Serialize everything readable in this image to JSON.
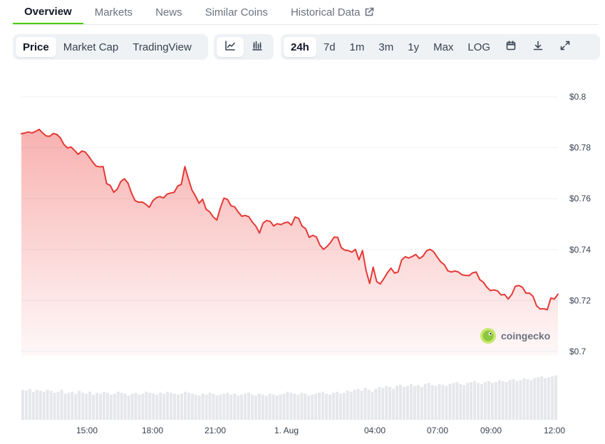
{
  "tabs": [
    {
      "label": "Overview",
      "active": true
    },
    {
      "label": "Markets"
    },
    {
      "label": "News"
    },
    {
      "label": "Similar Coins"
    },
    {
      "label": "Historical Data",
      "external_icon": "external-link-icon"
    }
  ],
  "toolbar": {
    "metric": [
      "Price",
      "Market Cap",
      "TradingView"
    ],
    "metric_selected": "Price",
    "chart_kind_icons": [
      "line-chart-icon",
      "candlestick-chart-icon"
    ],
    "chart_kind_selected": "line-chart-icon",
    "ranges": [
      "24h",
      "7d",
      "1m",
      "3m",
      "1y",
      "Max",
      "LOG"
    ],
    "range_selected": "24h",
    "action_icons": [
      "calendar-icon",
      "download-icon",
      "expand-icon"
    ]
  },
  "watermark": {
    "text": "coingecko"
  },
  "colors": {
    "accent": "#4bcc00",
    "line": "#e53935",
    "volume": "#e5e7eb"
  },
  "chart_data": {
    "type": "area",
    "x_tick_labels": [
      "15:00",
      "18:00",
      "21:00",
      "1. Aug",
      "04:00",
      "07:00",
      "09:00",
      "12:00"
    ],
    "y_tick_labels": [
      "$0.8",
      "$0.78",
      "$0.76",
      "$0.74",
      "$0.72",
      "$0.7"
    ],
    "ylim": [
      0.7,
      0.8
    ],
    "grid": true,
    "series": [
      {
        "values": [
          0.7855,
          0.7858,
          0.7862,
          0.7858,
          0.7864,
          0.7872,
          0.7858,
          0.7846,
          0.7845,
          0.7856,
          0.7852,
          0.7838,
          0.7812,
          0.7799,
          0.7803,
          0.7789,
          0.7774,
          0.7787,
          0.7783,
          0.7765,
          0.7745,
          0.7728,
          0.7725,
          0.7726,
          0.7659,
          0.7652,
          0.7625,
          0.7638,
          0.7668,
          0.7678,
          0.7661,
          0.7622,
          0.7592,
          0.7586,
          0.7587,
          0.7578,
          0.7566,
          0.7592,
          0.7604,
          0.7608,
          0.7603,
          0.7618,
          0.7622,
          0.7625,
          0.765,
          0.7656,
          0.7726,
          0.7678,
          0.7634,
          0.761,
          0.7582,
          0.7598,
          0.7558,
          0.7548,
          0.7528,
          0.7516,
          0.7564,
          0.7602,
          0.7597,
          0.7572,
          0.7568,
          0.7548,
          0.7531,
          0.7534,
          0.7529,
          0.7508,
          0.7492,
          0.7465,
          0.7504,
          0.7514,
          0.7511,
          0.7493,
          0.7502,
          0.7498,
          0.7505,
          0.7508,
          0.7496,
          0.7528,
          0.7523,
          0.7492,
          0.7482,
          0.7448,
          0.7456,
          0.745,
          0.7418,
          0.7401,
          0.7412,
          0.7428,
          0.7449,
          0.7448,
          0.7408,
          0.7398,
          0.7396,
          0.739,
          0.7401,
          0.736,
          0.7396,
          0.7318,
          0.7267,
          0.7331,
          0.7274,
          0.7265,
          0.7286,
          0.7309,
          0.7327,
          0.7308,
          0.7312,
          0.7359,
          0.7372,
          0.7367,
          0.7373,
          0.7381,
          0.7365,
          0.7374,
          0.7395,
          0.7401,
          0.7392,
          0.7371,
          0.7352,
          0.7341,
          0.7317,
          0.7312,
          0.7316,
          0.7312,
          0.7301,
          0.7299,
          0.7298,
          0.7309,
          0.7312,
          0.7282,
          0.7272,
          0.7252,
          0.7239,
          0.7242,
          0.7238,
          0.7222,
          0.7224,
          0.7206,
          0.7224,
          0.7256,
          0.7259,
          0.7252,
          0.7229,
          0.7229,
          0.7216,
          0.7179,
          0.7167,
          0.7168,
          0.7164,
          0.721,
          0.7206,
          0.7225
        ]
      }
    ],
    "volume": [
      0.82,
      0.81,
      0.83,
      0.8,
      0.82,
      0.81,
      0.8,
      0.82,
      0.81,
      0.79,
      0.8,
      0.82,
      0.78,
      0.79,
      0.8,
      0.78,
      0.81,
      0.79,
      0.78,
      0.8,
      0.77,
      0.79,
      0.78,
      0.8,
      0.79,
      0.77,
      0.78,
      0.8,
      0.79,
      0.78,
      0.76,
      0.78,
      0.79,
      0.77,
      0.78,
      0.8,
      0.79,
      0.78,
      0.77,
      0.79,
      0.78,
      0.8,
      0.79,
      0.78,
      0.77,
      0.78,
      0.8,
      0.79,
      0.78,
      0.77,
      0.76,
      0.78,
      0.77,
      0.79,
      0.78,
      0.76,
      0.77,
      0.78,
      0.79,
      0.77,
      0.78,
      0.76,
      0.77,
      0.78,
      0.79,
      0.77,
      0.76,
      0.78,
      0.77,
      0.76,
      0.78,
      0.77,
      0.76,
      0.77,
      0.78,
      0.8,
      0.79,
      0.78,
      0.77,
      0.79,
      0.78,
      0.76,
      0.77,
      0.78,
      0.79,
      0.8,
      0.78,
      0.77,
      0.79,
      0.8,
      0.78,
      0.79,
      0.81,
      0.8,
      0.82,
      0.83,
      0.81,
      0.84,
      0.82,
      0.8,
      0.83,
      0.85,
      0.84,
      0.86,
      0.85,
      0.83,
      0.86,
      0.87,
      0.85,
      0.86,
      0.88,
      0.86,
      0.87,
      0.85,
      0.88,
      0.89,
      0.87,
      0.86,
      0.88,
      0.87,
      0.86,
      0.88,
      0.89,
      0.9,
      0.88,
      0.87,
      0.89,
      0.9,
      0.91,
      0.89,
      0.88,
      0.9,
      0.91,
      0.89,
      0.9,
      0.92,
      0.91,
      0.9,
      0.92,
      0.93,
      0.91,
      0.92,
      0.94,
      0.93,
      0.92,
      0.94,
      0.95,
      0.96,
      0.94,
      0.95,
      0.96,
      0.97
    ]
  }
}
